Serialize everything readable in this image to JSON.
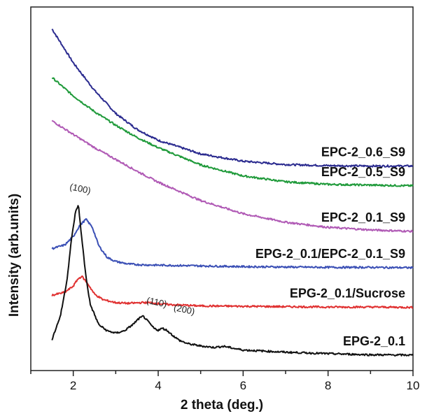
{
  "chart_data": {
    "type": "line",
    "title": "",
    "xlabel": "2 theta (deg.)",
    "ylabel": "Intensity (arb.units)",
    "xlim": [
      1,
      10
    ],
    "xticks": [
      2,
      4,
      6,
      8,
      10
    ],
    "yticks": "none",
    "grid": false,
    "legend": "none",
    "series": [
      {
        "name": "EPC-2_0.6_S9",
        "color": "#2b2b8f",
        "x": [
          1.5,
          2,
          2.5,
          3,
          3.5,
          4,
          5,
          6,
          7,
          8,
          9,
          10
        ],
        "y": [
          9.0,
          8.08,
          7.33,
          6.7,
          6.27,
          5.97,
          5.6,
          5.4,
          5.31,
          5.28,
          5.27,
          5.27
        ]
      },
      {
        "name": "EPC-2_0.5_S9",
        "color": "#1f9a3a",
        "x": [
          1.5,
          2,
          2.5,
          3,
          3.5,
          4,
          5,
          6,
          7,
          8,
          9,
          10
        ],
        "y": [
          7.68,
          7.18,
          6.75,
          6.38,
          6.05,
          5.77,
          5.3,
          5.0,
          4.84,
          4.77,
          4.75,
          4.73
        ]
      },
      {
        "name": "EPC-2_0.1_S9",
        "color": "#b05ab5",
        "x": [
          1.5,
          2,
          2.5,
          3,
          3.5,
          4,
          5,
          6,
          7,
          8,
          9,
          10
        ],
        "y": [
          6.5,
          6.13,
          5.77,
          5.45,
          5.13,
          4.83,
          4.33,
          3.97,
          3.74,
          3.6,
          3.53,
          3.49
        ]
      },
      {
        "name": "EPG-2_0.1/EPC-2_0.1_S9",
        "color": "#3a4fb5",
        "x": [
          1.5,
          1.8,
          2.0,
          2.15,
          2.3,
          2.45,
          2.6,
          2.8,
          3.0,
          3.3,
          3.6,
          4.0,
          5.0,
          6.0,
          7.0,
          8.0,
          9.0,
          10.0
        ],
        "y": [
          3.02,
          3.12,
          3.35,
          3.65,
          3.82,
          3.6,
          3.1,
          2.78,
          2.67,
          2.6,
          2.58,
          2.57,
          2.55,
          2.53,
          2.52,
          2.51,
          2.51,
          2.5
        ]
      },
      {
        "name": "EPG-2_0.1/Sucrose",
        "color": "#e03030",
        "x": [
          1.5,
          1.8,
          2.0,
          2.1,
          2.2,
          2.35,
          2.5,
          2.7,
          3.0,
          3.3,
          3.6,
          3.8,
          4.2,
          5.0,
          6.0,
          7.0,
          8.0,
          9.0,
          10.0
        ],
        "y": [
          1.75,
          1.83,
          2.0,
          2.18,
          2.27,
          2.05,
          1.78,
          1.63,
          1.55,
          1.53,
          1.55,
          1.55,
          1.5,
          1.46,
          1.45,
          1.44,
          1.43,
          1.43,
          1.42
        ]
      },
      {
        "name": "EPG-2_0.1",
        "color": "#111111",
        "x": [
          1.5,
          1.7,
          1.85,
          1.95,
          2.05,
          2.12,
          2.2,
          2.3,
          2.4,
          2.6,
          2.8,
          3.0,
          3.2,
          3.4,
          3.55,
          3.65,
          3.75,
          3.9,
          4.0,
          4.1,
          4.2,
          4.35,
          4.5,
          4.7,
          5.0,
          5.3,
          5.55,
          5.8,
          6.0,
          7.0,
          8.0,
          9.0,
          10.0
        ],
        "y": [
          0.55,
          1.2,
          2.15,
          3.2,
          4.0,
          4.22,
          3.3,
          2.25,
          1.5,
          0.95,
          0.78,
          0.72,
          0.78,
          0.95,
          1.12,
          1.18,
          1.05,
          0.85,
          0.8,
          0.85,
          0.8,
          0.65,
          0.52,
          0.43,
          0.37,
          0.33,
          0.36,
          0.3,
          0.26,
          0.2,
          0.16,
          0.13,
          0.12
        ]
      }
    ],
    "annotations": [
      {
        "text": "(100)",
        "x": 2.15,
        "y": 4.57,
        "rotate": 12
      },
      {
        "text": "(110)",
        "x": 3.95,
        "y": 1.48,
        "rotate": 12
      },
      {
        "text": "(200)",
        "x": 4.6,
        "y": 1.28,
        "rotate": 12
      }
    ]
  }
}
